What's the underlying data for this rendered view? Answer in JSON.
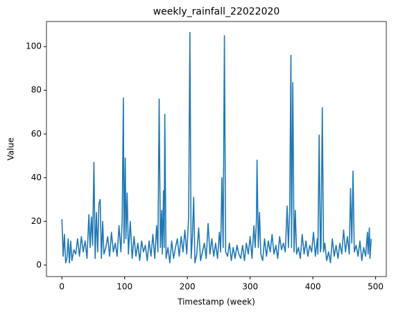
{
  "chart_data": {
    "type": "line",
    "title": "weekly_rainfall_22022020",
    "x_label": "Timestamp (week)",
    "y_label": "Value",
    "x": [
      0,
      2,
      4,
      6,
      8,
      10,
      12,
      14,
      16,
      19,
      22,
      25,
      28,
      31,
      34,
      37,
      40,
      43,
      45,
      47,
      49,
      51,
      53,
      55,
      57,
      59,
      61,
      63,
      65,
      67,
      70,
      73,
      76,
      79,
      82,
      85,
      88,
      91,
      94,
      96,
      98,
      99,
      101,
      102,
      104,
      106,
      109,
      112,
      115,
      118,
      121,
      124,
      127,
      130,
      133,
      136,
      139,
      142,
      145,
      148,
      151,
      153,
      155,
      157,
      159,
      160,
      162,
      163,
      164,
      166,
      169,
      172,
      175,
      178,
      181,
      184,
      187,
      190,
      193,
      196,
      199,
      202,
      204,
      206,
      208,
      210,
      212,
      215,
      218,
      221,
      224,
      227,
      230,
      233,
      236,
      239,
      242,
      245,
      248,
      251,
      253,
      255,
      257,
      259,
      261,
      264,
      267,
      270,
      273,
      276,
      279,
      282,
      285,
      288,
      291,
      294,
      297,
      300,
      303,
      306,
      308,
      310,
      311,
      313,
      315,
      317,
      320,
      323,
      326,
      329,
      332,
      335,
      338,
      341,
      344,
      347,
      350,
      353,
      356,
      359,
      361,
      363,
      365,
      366,
      368,
      370,
      372,
      374,
      377,
      380,
      383,
      386,
      389,
      392,
      395,
      398,
      401,
      404,
      407,
      408,
      410,
      412,
      413,
      415,
      417,
      419,
      422,
      425,
      428,
      431,
      434,
      437,
      440,
      443,
      446,
      449,
      452,
      455,
      458,
      460,
      462,
      464,
      466,
      469,
      472,
      475,
      478,
      481,
      484,
      487,
      488,
      490,
      491,
      493
    ],
    "series": [
      {
        "name": "Value",
        "color": "#1f77b4",
        "values": [
          21,
          4,
          14,
          1,
          3,
          12,
          1,
          11,
          2,
          7,
          5,
          12,
          4,
          13,
          6,
          11,
          3,
          23,
          8,
          22,
          9,
          47,
          3,
          24,
          6,
          28,
          30,
          3,
          20,
          5,
          8,
          13,
          4,
          15,
          6,
          10,
          4,
          18,
          6,
          20,
          76.5,
          10,
          49,
          12,
          33,
          5,
          20,
          3,
          13,
          4,
          10,
          2,
          11,
          6,
          9,
          2,
          11,
          4,
          14,
          3,
          18,
          6,
          76,
          8,
          25,
          5,
          34,
          8,
          69,
          3,
          8,
          1,
          11,
          3,
          8,
          12,
          4,
          13,
          6,
          16,
          5,
          22,
          106.5,
          3,
          13,
          31,
          1,
          5,
          17,
          2,
          6,
          10,
          3,
          19,
          5,
          12,
          4,
          10,
          3,
          15,
          6,
          40,
          8,
          105,
          6,
          4,
          10,
          2,
          8,
          3,
          9,
          5,
          3,
          9,
          2,
          10,
          5,
          13,
          3,
          18,
          8,
          20,
          48,
          8,
          24,
          5,
          2,
          12,
          4,
          11,
          6,
          14,
          5,
          9,
          3,
          13,
          7,
          10,
          6,
          27,
          8,
          25,
          96,
          8,
          83.5,
          6,
          25,
          5,
          8,
          3,
          14,
          5,
          11,
          4,
          9,
          6,
          15,
          4,
          12,
          5,
          59.5,
          6,
          8,
          72,
          6,
          10,
          2,
          6,
          1,
          12,
          4,
          9,
          3,
          10,
          5,
          16,
          6,
          13,
          5,
          35,
          10,
          43,
          6,
          9,
          4,
          11,
          2,
          8,
          4,
          15,
          5,
          17,
          3,
          12
        ]
      }
    ],
    "xlim": [
      -24.6,
      517
    ],
    "ylim": [
      -5.3,
      111.5
    ],
    "xticks": [
      0,
      100,
      200,
      300,
      400,
      500
    ],
    "yticks": [
      0,
      20,
      40,
      60,
      80,
      100
    ]
  }
}
